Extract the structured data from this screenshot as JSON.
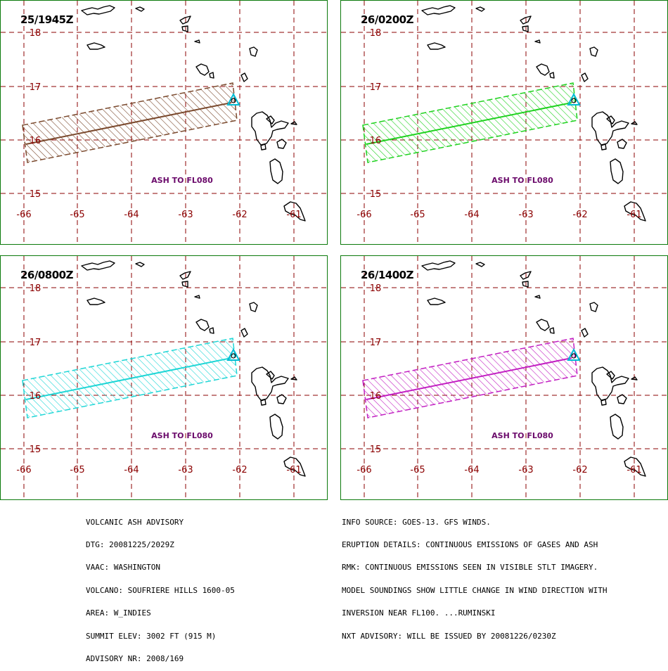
{
  "panels": [
    {
      "time": "25/1945Z",
      "plume_color": "#7b4a2e",
      "label": "ASH TO FL080"
    },
    {
      "time": "26/0200Z",
      "plume_color": "#1fd21f",
      "label": "ASH TO FL080"
    },
    {
      "time": "26/0800Z",
      "plume_color": "#1fd6d6",
      "label": "ASH TO FL080"
    },
    {
      "time": "26/1400Z",
      "plume_color": "#c21fc2",
      "label": "ASH TO FL080"
    }
  ],
  "map": {
    "lon_ticks": [
      "-66",
      "-65",
      "-64",
      "-63",
      "-62",
      "-61"
    ],
    "lat_ticks": [
      "18",
      "17",
      "16",
      "15"
    ],
    "grid_color": "#8b0000",
    "label_color": "#6b0a6b",
    "volcano_color": "#00bcd4"
  },
  "advisory": {
    "left": [
      "VOLCANIC ASH ADVISORY",
      "DTG: 20081225/2029Z",
      "VAAC: WASHINGTON",
      "VOLCANO: SOUFRIERE HILLS 1600-05",
      "AREA: W_INDIES",
      "SUMMIT ELEV: 3002 FT (915 M)",
      "ADVISORY NR: 2008/169"
    ],
    "right": [
      "INFO SOURCE: GOES-13. GFS WINDS.",
      "ERUPTION DETAILS: CONTINUOUS EMISSIONS OF GASES AND ASH",
      "RMK: CONTINUOUS EMISSIONS SEEN IN VISIBLE STLT IMAGERY.",
      "MODEL SOUNDINGS SHOW LITTLE CHANGE IN WIND DIRECTION WITH",
      "INVERSION NEAR FL100. ...RUMINSKI",
      "NXT ADVISORY: WILL BE ISSUED BY 20081226/0230Z"
    ]
  }
}
